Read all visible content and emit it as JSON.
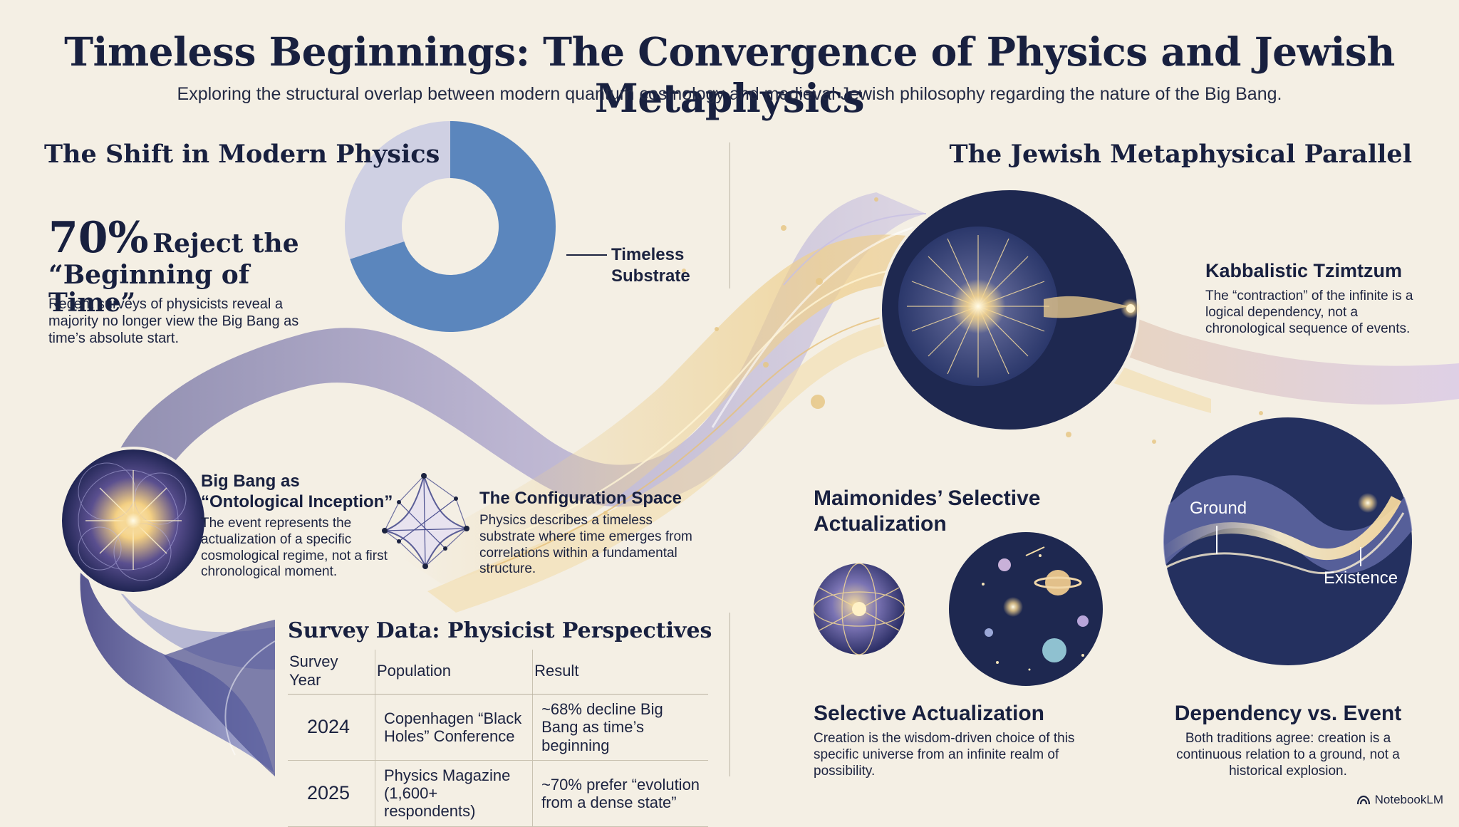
{
  "title": "Timeless Beginnings: The Convergence of Physics and Jewish Metaphysics",
  "subtitle": "Exploring the structural overlap between modern quantum cosmology and medieval Jewish philosophy regarding the nature of the Big Bang.",
  "physics": {
    "heading": "The Shift in Modern Physics",
    "stat_value": "70%",
    "stat_line1": "Reject the",
    "stat_line2": "“Beginning of Time”",
    "stat_text": "Recent surveys of physicists reveal a majority no longer view the Big Bang as time’s absolute start.",
    "donut_label_line1": "Timeless",
    "donut_label_line2": "Substrate",
    "donut_fraction": 0.7,
    "bigbang_title_line1": "Big Bang as",
    "bigbang_title_line2": "“Ontological Inception”",
    "bigbang_text": "The event represents the actualization of a specific cosmological regime, not a first chronological moment.",
    "config_title": "The Configuration Space",
    "config_text": "Physics describes a timeless substrate where time emerges from correlations within a fundamental structure."
  },
  "survey": {
    "title": "Survey Data: Physicist Perspectives",
    "headers": [
      "Survey Year",
      "Population",
      "Result"
    ],
    "rows": [
      {
        "year": "2024",
        "pop_line1": "Copenhagen “Black",
        "pop_line2": "Holes” Conference",
        "res_line1": "~68% decline Big",
        "res_line2": "Bang as time’s beginning"
      },
      {
        "year": "2025",
        "pop_line1": "Physics Magazine",
        "pop_line2": "(1,600+ respondents)",
        "res_line1": "~70% prefer “evolution",
        "res_line2": "from a dense state”"
      }
    ]
  },
  "jewish": {
    "heading": "The Jewish Metaphysical Parallel",
    "kab_title": "Kabbalistic Tzimtzum",
    "kab_text": "The “contraction” of the infinite is a logical dependency, not a chronological sequence of events.",
    "maim_title_line1": "Maimonides’ Selective",
    "maim_title_line2": "Actualization",
    "sel_title": "Selective Actualization",
    "sel_text": "Creation is the wisdom-driven choice of this specific universe from an infinite realm of possibility.",
    "dep_title": "Dependency vs. Event",
    "dep_text": "Both traditions agree: creation is a continuous relation to a ground, not a historical explosion.",
    "ground_label": "Ground",
    "existence_label": "Existence"
  },
  "brand": "NotebookLM",
  "colors": {
    "background": "#f4efe4",
    "donut_major": "#5b86bd",
    "donut_minor": "#cfd0e3",
    "navy": "#1e2850",
    "gold": "#e8c781"
  }
}
